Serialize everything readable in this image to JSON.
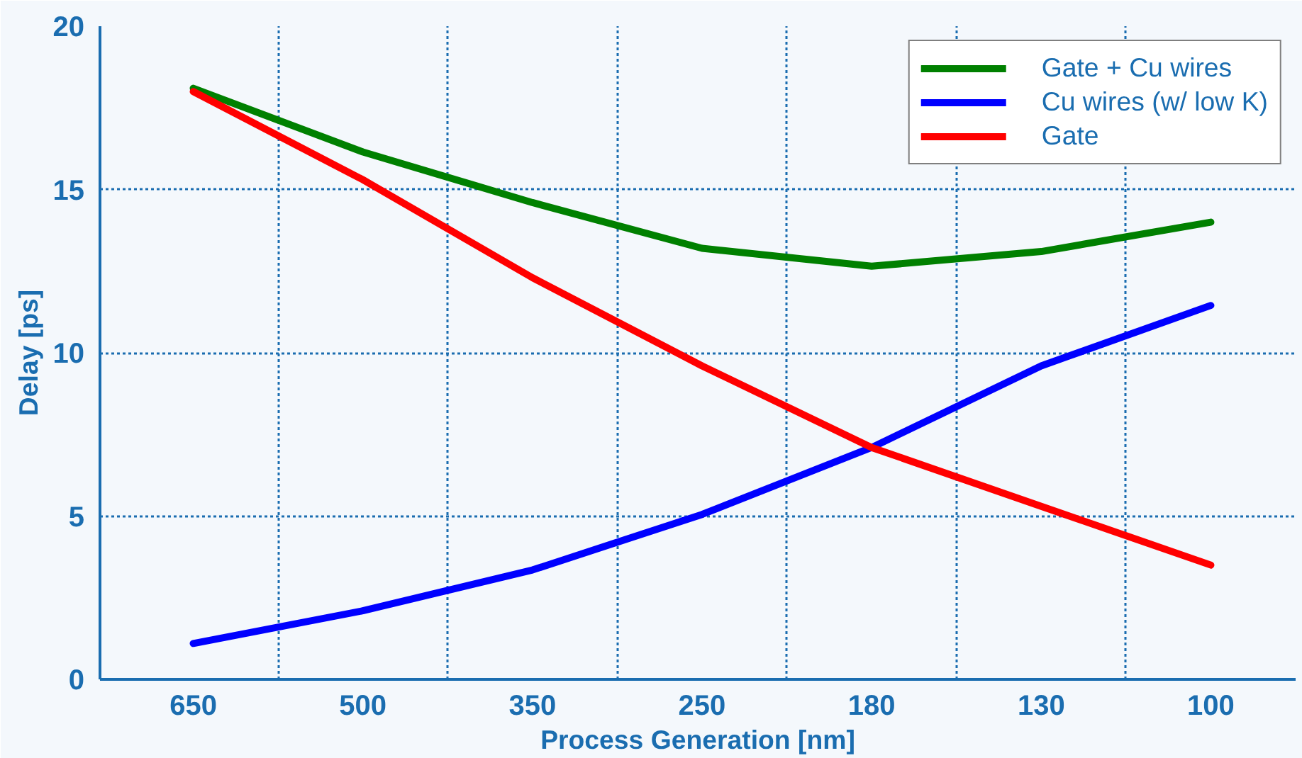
{
  "chart_data": {
    "type": "line",
    "xlabel": "Process Generation [nm]",
    "ylabel": "Delay [ps]",
    "categories": [
      "650",
      "500",
      "350",
      "250",
      "180",
      "130",
      "100"
    ],
    "series": [
      {
        "name": "Gate + Cu wires",
        "color": "#008000",
        "values": [
          18.1,
          16.15,
          14.6,
          13.2,
          12.65,
          13.1,
          14.0
        ]
      },
      {
        "name": "Cu wires (w/ low K)",
        "color": "#0000ff",
        "values": [
          1.1,
          2.1,
          3.35,
          5.05,
          7.1,
          9.6,
          11.45
        ]
      },
      {
        "name": "Gate",
        "color": "#ff0000",
        "values": [
          18.0,
          15.3,
          12.3,
          9.6,
          7.1,
          5.3,
          3.5
        ]
      }
    ],
    "ylim": [
      0,
      20
    ],
    "yticks": [
      0,
      5,
      10,
      15,
      20
    ],
    "grid": true,
    "legend": "top right",
    "marker": "none",
    "line_style": "solid"
  }
}
